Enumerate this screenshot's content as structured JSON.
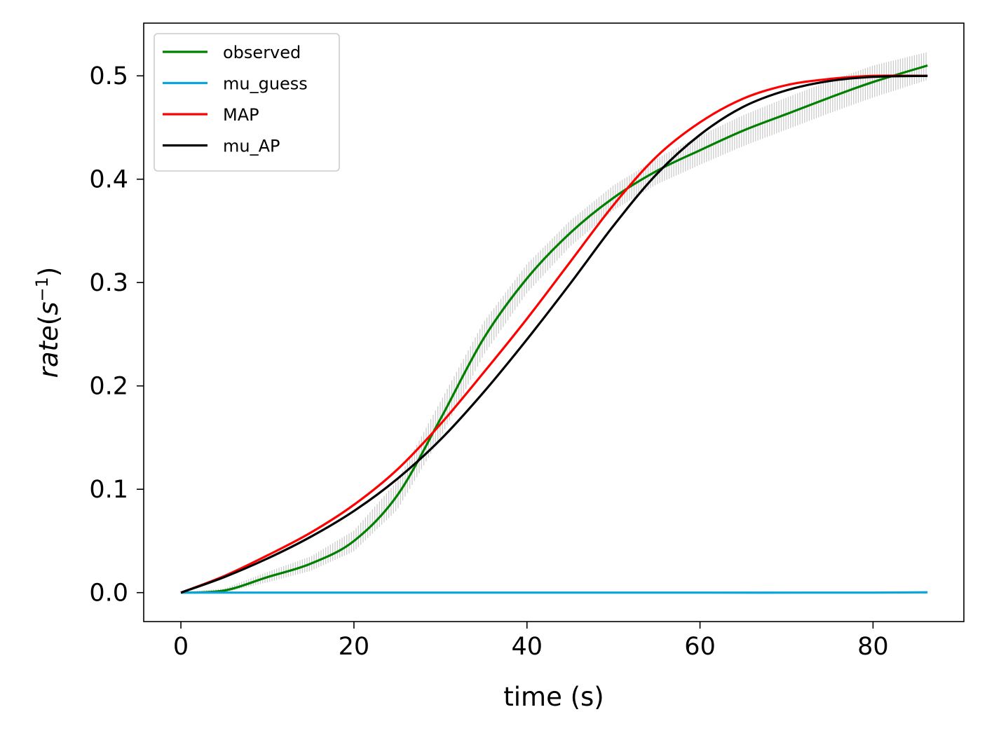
{
  "chart_data": {
    "type": "line",
    "xlabel": "time (s)",
    "ylabel": {
      "italic": "rate",
      "paren_open": "(",
      "base": "s",
      "exponent": "−1",
      "paren_close": ")"
    },
    "xlim": [
      -4.3,
      90.5
    ],
    "ylim": [
      -0.028,
      0.551
    ],
    "xticks": [
      0,
      20,
      40,
      60,
      80
    ],
    "xtick_labels": [
      "0",
      "20",
      "40",
      "60",
      "80"
    ],
    "yticks": [
      0.0,
      0.1,
      0.2,
      0.3,
      0.4,
      0.5
    ],
    "ytick_labels": [
      "0.0",
      "0.1",
      "0.2",
      "0.3",
      "0.4",
      "0.5"
    ],
    "grid": false,
    "legend_position": "top-left",
    "error_band": {
      "color": "#c8c8c8",
      "x": [
        0,
        5,
        10,
        15,
        20,
        25,
        30,
        35,
        40,
        45,
        50,
        55,
        60,
        65,
        70,
        75,
        80,
        86.3
      ],
      "lower": [
        0.0,
        0.0,
        0.01,
        0.021,
        0.04,
        0.08,
        0.15,
        0.23,
        0.29,
        0.335,
        0.37,
        0.395,
        0.414,
        0.432,
        0.448,
        0.464,
        0.479,
        0.496
      ],
      "upper": [
        0.0,
        0.004,
        0.02,
        0.035,
        0.06,
        0.108,
        0.185,
        0.262,
        0.318,
        0.36,
        0.394,
        0.42,
        0.442,
        0.462,
        0.479,
        0.495,
        0.51,
        0.523
      ]
    },
    "series": [
      {
        "name": "observed",
        "color": "#008000",
        "x": [
          0,
          5,
          10,
          15,
          20,
          25,
          30,
          35,
          40,
          45,
          50,
          55,
          60,
          65,
          70,
          75,
          80,
          86.3
        ],
        "y": [
          0.0,
          0.002,
          0.015,
          0.028,
          0.05,
          0.094,
          0.168,
          0.246,
          0.304,
          0.348,
          0.382,
          0.408,
          0.428,
          0.447,
          0.463,
          0.479,
          0.494,
          0.51
        ]
      },
      {
        "name": "mu_guess",
        "color": "#0ba5db",
        "x": [
          0,
          20,
          40,
          60,
          80,
          86.3
        ],
        "y": [
          0.0,
          0.0,
          0.0,
          0.0,
          0.0,
          0.0003
        ]
      },
      {
        "name": "MAP",
        "color": "#ff0000",
        "x": [
          0,
          5,
          10,
          15,
          20,
          25,
          30,
          35,
          40,
          45,
          50,
          55,
          60,
          65,
          70,
          75,
          80,
          86.3
        ],
        "y": [
          0.0,
          0.016,
          0.036,
          0.058,
          0.085,
          0.119,
          0.163,
          0.213,
          0.265,
          0.32,
          0.375,
          0.422,
          0.455,
          0.478,
          0.491,
          0.497,
          0.5,
          0.5
        ]
      },
      {
        "name": "mu_AP",
        "color": "#000000",
        "x": [
          0,
          5,
          10,
          15,
          20,
          25,
          30,
          35,
          40,
          45,
          50,
          55,
          60,
          65,
          70,
          75,
          80,
          86.3
        ],
        "y": [
          0.0,
          0.015,
          0.033,
          0.054,
          0.079,
          0.11,
          0.148,
          0.194,
          0.245,
          0.299,
          0.355,
          0.405,
          0.443,
          0.47,
          0.486,
          0.495,
          0.499,
          0.5
        ]
      }
    ]
  }
}
